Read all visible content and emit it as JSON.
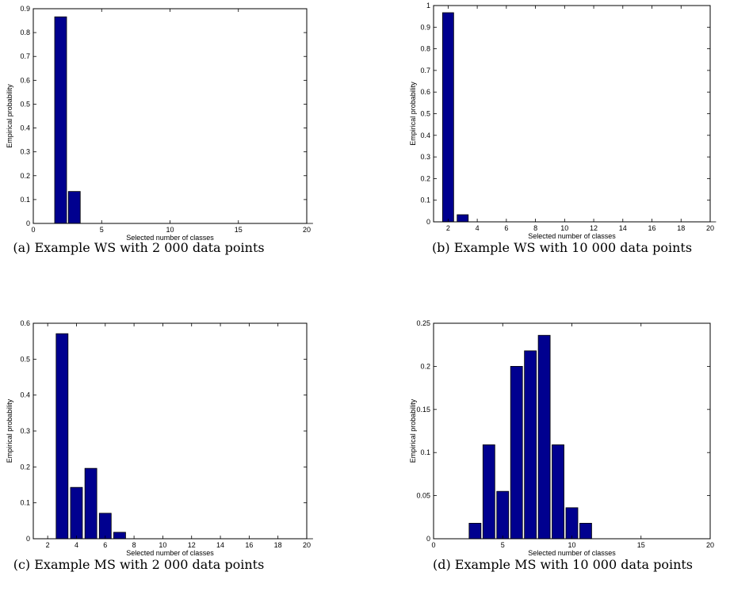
{
  "chart_data": [
    {
      "type": "bar",
      "caption": "(a) Example WS with 2 000 data points",
      "xlabel": "Selected number of classes",
      "ylabel": "Empirical probability",
      "xlim": [
        0,
        20
      ],
      "ylim": [
        0,
        0.9
      ],
      "xticks": [
        0,
        5,
        10,
        15,
        20
      ],
      "xtick_labels": [
        "0",
        "5",
        "10",
        "15",
        "20"
      ],
      "yticks": [
        0,
        0.1,
        0.2,
        0.3,
        0.4,
        0.5,
        0.6,
        0.7,
        0.8,
        0.9
      ],
      "ytick_labels": [
        "0",
        "0.1",
        "0.2",
        "0.3",
        "0.4",
        "0.5",
        "0.6",
        "0.7",
        "0.8",
        "0.9"
      ],
      "x": [
        2,
        3,
        4,
        5,
        6,
        7,
        8,
        9,
        10,
        11,
        12,
        13,
        14,
        15,
        16,
        17,
        18,
        19,
        20
      ],
      "values": [
        0.866,
        0.134,
        0,
        0,
        0,
        0,
        0,
        0,
        0,
        0,
        0,
        0,
        0,
        0,
        0,
        0,
        0,
        0,
        0
      ],
      "bar_color": "#00008f"
    },
    {
      "type": "bar",
      "caption": "(b) Example WS with 10 000 data points",
      "xlabel": "Selected number of classes",
      "ylabel": "Empirical probability",
      "xlim": [
        1,
        20
      ],
      "ylim": [
        0,
        1
      ],
      "xticks": [
        2,
        4,
        6,
        8,
        10,
        12,
        14,
        16,
        18,
        20
      ],
      "xtick_labels": [
        "2",
        "4",
        "6",
        "8",
        "10",
        "12",
        "14",
        "16",
        "18",
        "20"
      ],
      "yticks": [
        0,
        0.1,
        0.2,
        0.3,
        0.4,
        0.5,
        0.6,
        0.7,
        0.8,
        0.9,
        1
      ],
      "ytick_labels": [
        "0",
        "0.1",
        "0.2",
        "0.3",
        "0.4",
        "0.5",
        "0.6",
        "0.7",
        "0.8",
        "0.9",
        "1"
      ],
      "x": [
        2,
        3,
        4,
        5,
        6,
        7,
        8,
        9,
        10,
        11,
        12,
        13,
        14,
        15,
        16,
        17,
        18,
        19,
        20
      ],
      "values": [
        0.967,
        0.033,
        0,
        0,
        0,
        0,
        0,
        0,
        0,
        0,
        0,
        0,
        0,
        0,
        0,
        0,
        0,
        0,
        0
      ],
      "bar_color": "#00008f"
    },
    {
      "type": "bar",
      "caption": "(c) Example MS with 2 000 data points",
      "xlabel": "Selected number of classes",
      "ylabel": "Empirical probability",
      "xlim": [
        1,
        20
      ],
      "ylim": [
        0,
        0.6
      ],
      "xticks": [
        2,
        4,
        6,
        8,
        10,
        12,
        14,
        16,
        18,
        20
      ],
      "xtick_labels": [
        "2",
        "4",
        "6",
        "8",
        "10",
        "12",
        "14",
        "16",
        "18",
        "20"
      ],
      "yticks": [
        0,
        0.1,
        0.2,
        0.3,
        0.4,
        0.5,
        0.6
      ],
      "ytick_labels": [
        "0",
        "0.1",
        "0.2",
        "0.3",
        "0.4",
        "0.5",
        "0.6"
      ],
      "x": [
        2,
        3,
        4,
        5,
        6,
        7,
        8,
        9,
        10,
        11,
        12,
        13,
        14,
        15,
        16,
        17,
        18,
        19,
        20
      ],
      "values": [
        0,
        0.571,
        0.143,
        0.196,
        0.071,
        0.018,
        0,
        0,
        0,
        0,
        0,
        0,
        0,
        0,
        0,
        0,
        0,
        0,
        0
      ],
      "bar_color": "#00008f"
    },
    {
      "type": "bar",
      "caption": "(d) Example MS with 10 000 data points",
      "xlabel": "Selected number of classes",
      "ylabel": "Empirical probability",
      "xlim": [
        0,
        20
      ],
      "ylim": [
        0,
        0.25
      ],
      "xticks": [
        0,
        5,
        10,
        15,
        20
      ],
      "xtick_labels": [
        "0",
        "5",
        "10",
        "15",
        "20"
      ],
      "yticks": [
        0,
        0.05,
        0.1,
        0.15,
        0.2,
        0.25
      ],
      "ytick_labels": [
        "0",
        "0.05",
        "0.1",
        "0.15",
        "0.2",
        "0.25"
      ],
      "x": [
        3,
        4,
        5,
        6,
        7,
        8,
        9,
        10,
        11
      ],
      "values": [
        0.018,
        0.109,
        0.055,
        0.2,
        0.218,
        0.236,
        0.109,
        0.036,
        0.018
      ],
      "bar_color": "#00008f"
    }
  ]
}
